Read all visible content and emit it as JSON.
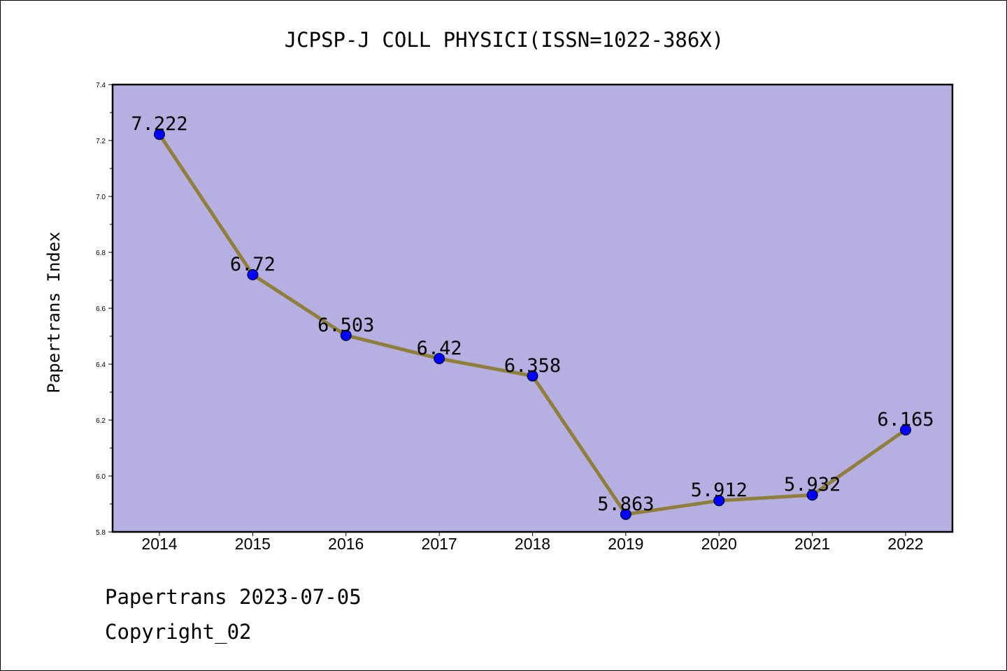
{
  "chart_data": {
    "type": "line",
    "title": "JCPSP-J COLL PHYSICI(ISSN=1022-386X)",
    "xlabel": "",
    "ylabel": "Papertrans Index",
    "categories": [
      "2014",
      "2015",
      "2016",
      "2017",
      "2018",
      "2019",
      "2020",
      "2021",
      "2022"
    ],
    "values": [
      7.222,
      6.72,
      6.503,
      6.42,
      6.358,
      5.863,
      5.912,
      5.932,
      6.165
    ],
    "value_labels": [
      "7.222",
      "6.72",
      "6.503",
      "6.42",
      "6.358",
      "5.863",
      "5.912",
      "5.932",
      "6.165"
    ],
    "ylim": [
      5.8,
      7.4
    ],
    "yticks": [
      "5.8",
      "6.0",
      "6.2",
      "6.4",
      "6.6",
      "6.8",
      "7.0",
      "7.2",
      "7.4"
    ],
    "grid": false,
    "colors": {
      "plot_background": "#b5afe2",
      "line": "#8f7f3a",
      "marker": "#0000ff"
    }
  },
  "footer": {
    "line1": "Papertrans 2023-07-05",
    "line2": "Copyright_02"
  }
}
